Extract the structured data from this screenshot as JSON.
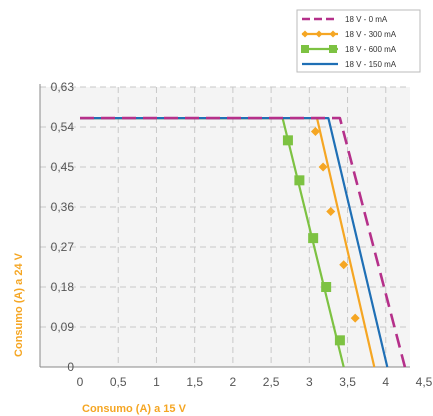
{
  "chart_data": {
    "type": "line",
    "title": "",
    "xlabel": "Consumo (A) a 15 V",
    "ylabel": "Consumo (A) a 24 V",
    "xlim": [
      0,
      4.5
    ],
    "ylim": [
      0,
      0.63
    ],
    "x_ticks": [
      "0",
      "0,5",
      "1",
      "1,5",
      "2",
      "2,5",
      "3",
      "3,5",
      "4",
      "4,5"
    ],
    "y_ticks": [
      "0",
      "0,09",
      "0,18",
      "0,27",
      "0,36",
      "0,45",
      "0,54",
      "0,63"
    ],
    "x_tick_values": [
      0,
      0.5,
      1,
      1.5,
      2,
      2.5,
      3,
      3.5,
      4,
      4.5
    ],
    "y_tick_values": [
      0,
      0.09,
      0.18,
      0.27,
      0.36,
      0.45,
      0.54,
      0.63
    ],
    "grid": true,
    "legend_position": "top-right",
    "series": [
      {
        "name": "18 V - 0 mA",
        "color": "#b5308a",
        "style": "dashed",
        "marker": "none",
        "points": [
          [
            0,
            0.56
          ],
          [
            3.4,
            0.56
          ],
          [
            4.25,
            0
          ]
        ]
      },
      {
        "name": "18 V - 300 mA",
        "color": "#f5a623",
        "style": "solid",
        "marker": "diamond",
        "points": [
          [
            0,
            0.56
          ],
          [
            3.1,
            0.56
          ],
          [
            3.85,
            0
          ]
        ],
        "marker_points": [
          [
            3.08,
            0.53
          ],
          [
            3.18,
            0.45
          ],
          [
            3.28,
            0.35
          ],
          [
            3.45,
            0.23
          ],
          [
            3.6,
            0.11
          ]
        ]
      },
      {
        "name": "18 V - 600 mA",
        "color": "#7dc242",
        "style": "solid",
        "marker": "square",
        "points": [
          [
            0,
            0.56
          ],
          [
            2.65,
            0.56
          ],
          [
            3.45,
            0
          ]
        ],
        "marker_points": [
          [
            2.72,
            0.51
          ],
          [
            2.87,
            0.42
          ],
          [
            3.05,
            0.29
          ],
          [
            3.22,
            0.18
          ],
          [
            3.4,
            0.06
          ]
        ]
      },
      {
        "name": "18 V - 150 mA",
        "color": "#1f6fb5",
        "style": "solid",
        "marker": "none",
        "points": [
          [
            0,
            0.56
          ],
          [
            3.25,
            0.56
          ],
          [
            4.02,
            0
          ]
        ]
      }
    ]
  }
}
